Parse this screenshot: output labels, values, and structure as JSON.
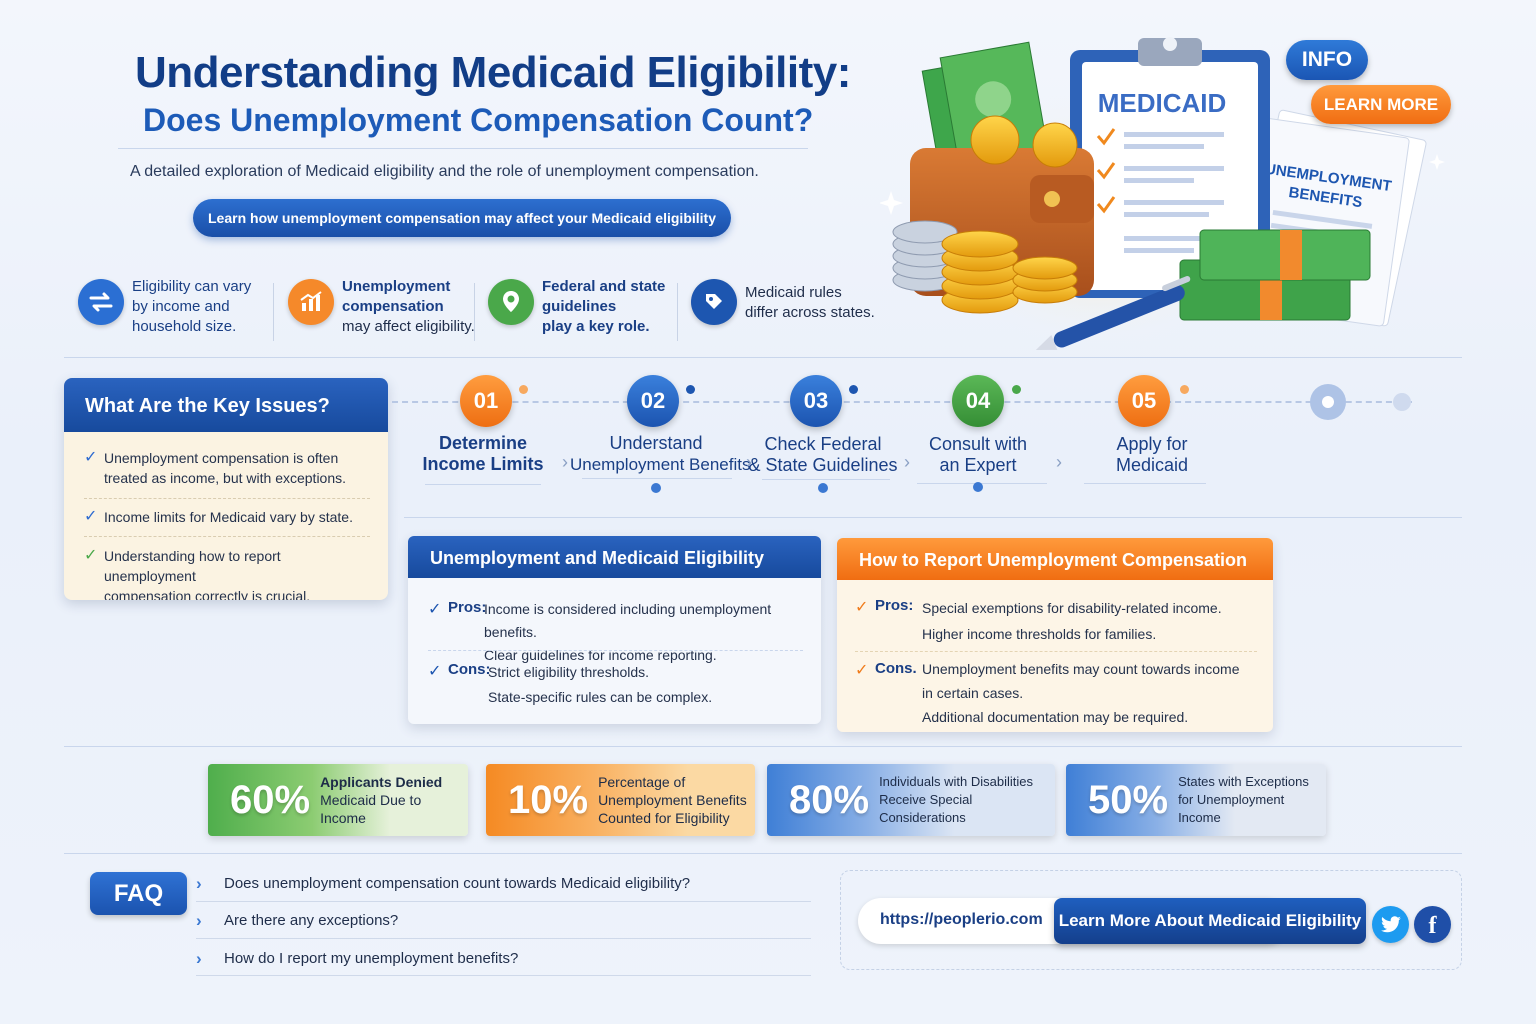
{
  "header": {
    "title": "Understanding Medicaid Eligibility:",
    "subtitle_title": "Does Unemployment Compensation Count?",
    "description": "A detailed exploration of Medicaid eligibility and the role of unemployment compensation.",
    "cta_label": "Learn how unemployment compensation may affect your Medicaid eligibility"
  },
  "illustration": {
    "clipboard_title": "MEDICAID",
    "paper_title_1": "UNEMPLOYMENT",
    "paper_title_2": "BENEFITS",
    "info_label": "INFO",
    "learn_more_label": "LEARN MORE"
  },
  "features": [
    {
      "line1": "Eligibility can vary",
      "line2": "by income and",
      "line3": "household size.",
      "icon": "arrows-icon",
      "color": "#2b6fd3"
    },
    {
      "line1": "Unemployment",
      "line2": "compensation",
      "line3": "may affect eligibility.",
      "icon": "chart-icon",
      "color": "#f5892a"
    },
    {
      "line1": "Federal and state",
      "line2": "guidelines",
      "line3": "play a key role.",
      "icon": "map-pin-icon",
      "color": "#4aa84a"
    },
    {
      "line1": "Medicaid rules",
      "line2": "differ across states.",
      "line3": "",
      "icon": "tag-icon",
      "color": "#1d56b0"
    }
  ],
  "issues": {
    "title": "What Are the Key Issues?",
    "items": [
      {
        "l1": "Unemployment compensation is often",
        "l2": "treated as income, but with exceptions."
      },
      {
        "l1": "Income limits for Medicaid vary by state.",
        "l2": ""
      },
      {
        "l1": "Understanding how to report unemployment",
        "l2": "compensation correctly is crucial."
      }
    ]
  },
  "steps": [
    {
      "num": "01",
      "l1": "Determine",
      "l2": "Income Limits",
      "color": "#f5892a"
    },
    {
      "num": "02",
      "l1": "Understand",
      "l2": "Unemployment Benefits",
      "color": "#2b6fd3"
    },
    {
      "num": "03",
      "l1": "Check Federal",
      "l2": "& State Guidelines",
      "color": "#2b6fd3"
    },
    {
      "num": "04",
      "l1": "Consult with",
      "l2": "an Expert",
      "color": "#4aa84a"
    },
    {
      "num": "05",
      "l1": "Apply for",
      "l2": "Medicaid",
      "color": "#f5892a"
    }
  ],
  "eligibility_card": {
    "title": "Unemployment and Medicaid Eligibility",
    "pros_label": "Pros:",
    "pros": [
      "Income is considered including unemployment benefits.",
      "Clear guidelines for income reporting."
    ],
    "cons_label": "Cons:",
    "cons": [
      "Strict eligibility thresholds.",
      "State-specific rules can be complex."
    ]
  },
  "report_card": {
    "title": "How to Report Unemployment Compensation",
    "pros_label": "Pros:",
    "pros": [
      "Special exemptions for disability-related income.",
      "Higher income thresholds for families."
    ],
    "cons_label": "Cons.",
    "cons": [
      "Unemployment benefits may count towards income",
      "in certain cases.",
      "Additional documentation may be required."
    ]
  },
  "stats": [
    {
      "value": "60%",
      "l1": "Applicants Denied",
      "l2": "Medicaid Due to Income",
      "l3": "",
      "color_from": "#4fae4c",
      "color_to": "#e6f1da"
    },
    {
      "value": "10%",
      "l1": "Percentage of",
      "l2": "Unemployment Benefits",
      "l3": "Counted for Eligibility",
      "color_from": "#f58a23",
      "color_to": "#fbd9a3"
    },
    {
      "value": "80%",
      "l1": "Individuals with Disabilities",
      "l2": "Receive Special Considerations",
      "l3": "",
      "color_from": "#3f7fd6",
      "color_to": "#dbe5f4"
    },
    {
      "value": "50%",
      "l1": "States with Exceptions",
      "l2": "for Unemployment Income",
      "l3": "",
      "color_from": "#3f7fd6",
      "color_to": "#e3e9f3"
    }
  ],
  "faq": {
    "label": "FAQ",
    "questions": [
      "Does unemployment compensation count towards Medicaid eligibility?",
      "Are there any exceptions?",
      "How do I report my unemployment benefits?"
    ]
  },
  "footer": {
    "url": "https://peoplerio.com",
    "button_label": "Learn More About Medicaid Eligibility",
    "twitter_icon": "twitter-icon",
    "facebook_icon": "facebook-icon",
    "facebook_glyph": "f"
  }
}
